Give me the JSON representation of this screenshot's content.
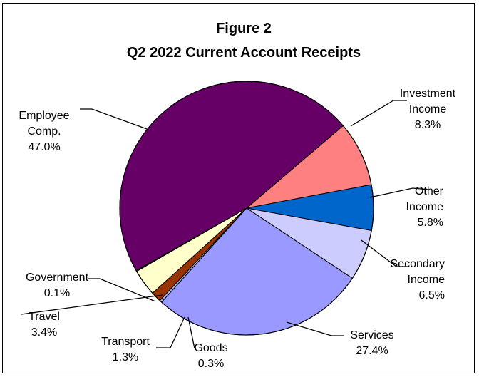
{
  "chart_data": {
    "type": "pie",
    "title": "Figure 2",
    "subtitle": "Q2 2022 Current Account Receipts",
    "slices": [
      {
        "name": "Investment Income",
        "label_lines": [
          "Investment",
          "Income"
        ],
        "pct_text": "8.3%",
        "value": 8.3,
        "color": "#ff8080"
      },
      {
        "name": "Other Income",
        "label_lines": [
          "Other",
          "Income"
        ],
        "pct_text": "5.8%",
        "value": 5.8,
        "color": "#0066cc"
      },
      {
        "name": "Secondary Income",
        "label_lines": [
          "Secondary",
          "Income"
        ],
        "pct_text": "6.5%",
        "value": 6.5,
        "color": "#ccccff"
      },
      {
        "name": "Services",
        "label_lines": [
          "Services"
        ],
        "pct_text": "27.4%",
        "value": 27.4,
        "color": "#9999ff"
      },
      {
        "name": "Goods",
        "label_lines": [
          "Goods"
        ],
        "pct_text": "0.3%",
        "value": 0.3,
        "color": "#b3b3e6"
      },
      {
        "name": "Transport",
        "label_lines": [
          "Transport"
        ],
        "pct_text": "1.3%",
        "value": 1.3,
        "color": "#993300"
      },
      {
        "name": "Travel",
        "label_lines": [
          "Travel"
        ],
        "pct_text": "3.4%",
        "value": 3.4,
        "color": "#ffffcc"
      },
      {
        "name": "Government",
        "label_lines": [
          "Government"
        ],
        "pct_text": "0.1%",
        "value": 0.1,
        "color": "#cccc99"
      },
      {
        "name": "Employee Comp.",
        "label_lines": [
          "Employee",
          "Comp."
        ],
        "pct_text": "47.0%",
        "value": 47.0,
        "color": "#660066"
      }
    ]
  }
}
